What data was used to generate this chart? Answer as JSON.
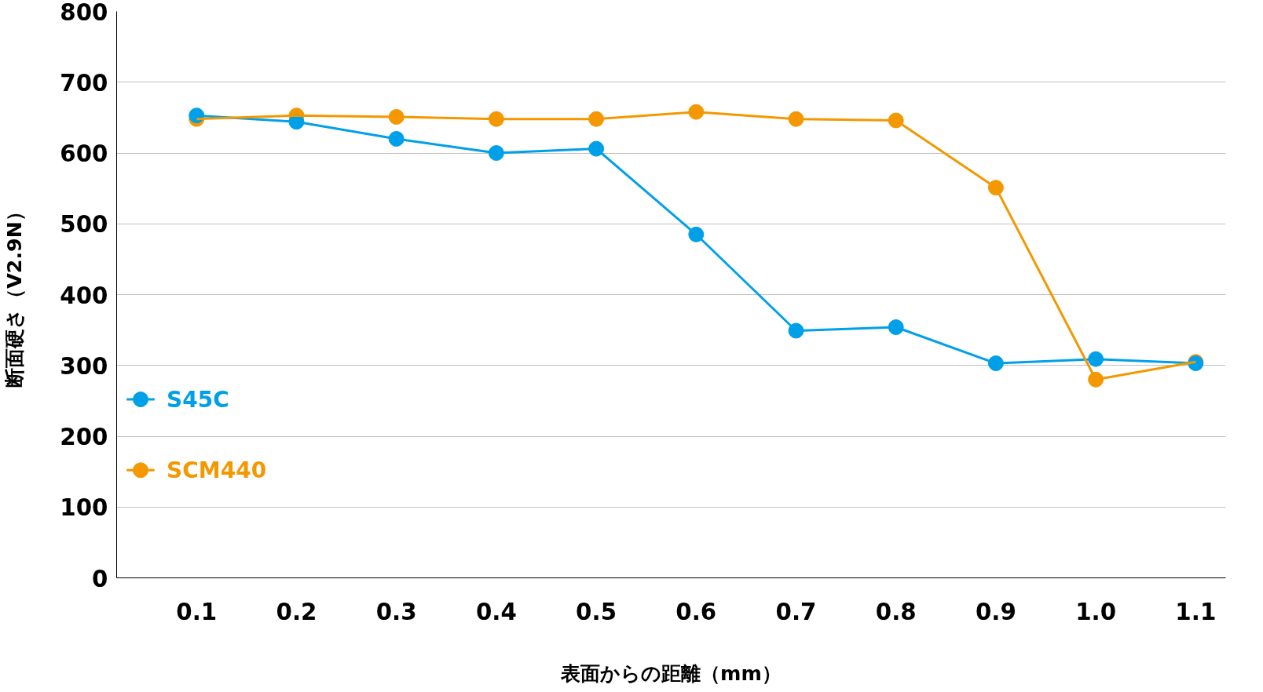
{
  "chart_data": {
    "type": "line",
    "xlabel": "表面からの距離（mm）",
    "ylabel": "断面硬さ（V2.9N）",
    "categories": [
      "0.1",
      "0.2",
      "0.3",
      "0.4",
      "0.5",
      "0.6",
      "0.7",
      "0.8",
      "0.9",
      "1.0",
      "1.1"
    ],
    "series": [
      {
        "name": "S45C",
        "color": "#00a0e9",
        "values": [
          653,
          644,
          620,
          600,
          606,
          485,
          349,
          354,
          303,
          309,
          303
        ]
      },
      {
        "name": "SCM440",
        "color": "#f39800",
        "values": [
          648,
          653,
          651,
          648,
          648,
          658,
          648,
          646,
          551,
          280,
          305
        ]
      }
    ],
    "ylim": [
      0,
      800
    ],
    "yticks": [
      0,
      100,
      200,
      300,
      400,
      500,
      600,
      700,
      800
    ],
    "grid": "y",
    "legend": "left",
    "marker": "circle",
    "line_style": "solid"
  }
}
